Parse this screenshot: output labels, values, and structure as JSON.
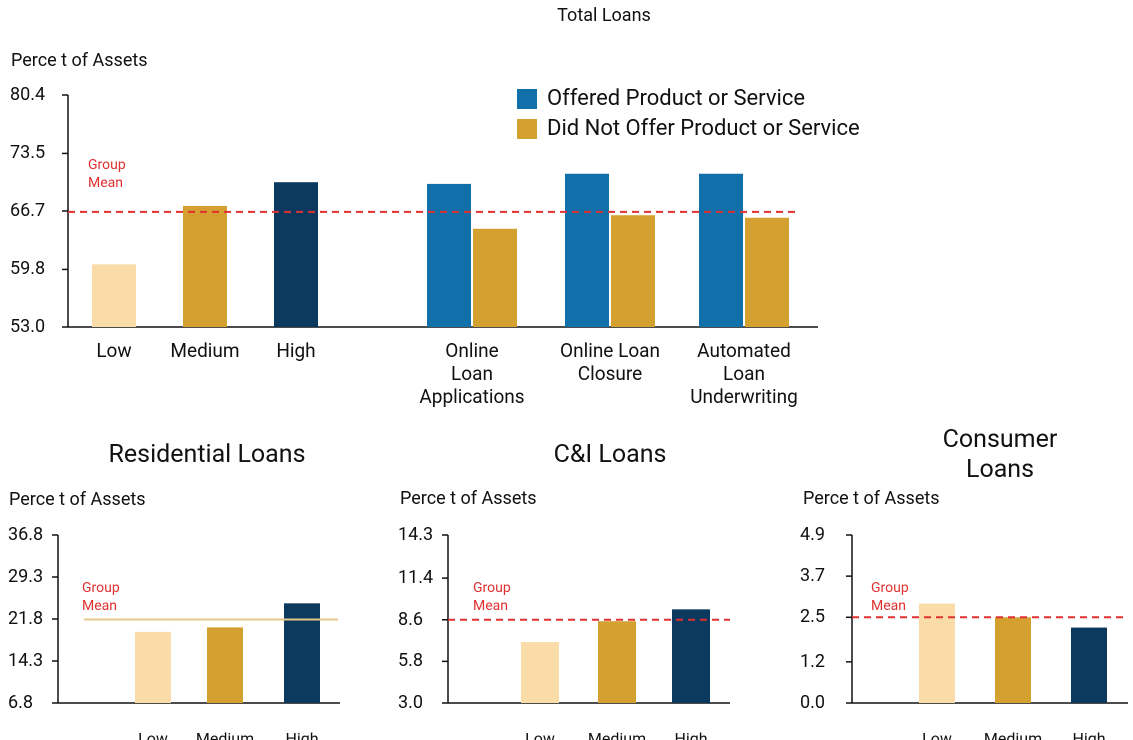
{
  "chart_data": [
    {
      "type": "bar",
      "title": "Total Loans",
      "ylabel": "Perce t of Assets",
      "categories": [
        "Low",
        "Medium",
        "High",
        "Online\nLoan\nApplications",
        "Online Loan\nClosure",
        "Automated\nLoan\nUnderwriting"
      ],
      "series": [
        {
          "colors": [
            "#f9dca8",
            "#d4a030",
            "#0b3a5e"
          ],
          "values": [
            60.4,
            67.3,
            70.1,
            null,
            null,
            null
          ]
        },
        {
          "name": "Offered Product or Service",
          "color": "#1170aa",
          "values": [
            null,
            null,
            null,
            69.9,
            71.1,
            71.1
          ]
        },
        {
          "name": "Did Not Offer Product or Service",
          "color": "#d4a030",
          "values": [
            null,
            null,
            null,
            64.6,
            66.2,
            65.9
          ]
        }
      ],
      "ylim": [
        53,
        80.4
      ],
      "yticks": [
        {
          "value": 53,
          "label": "53.0"
        },
        59.8,
        66.7,
        73.5,
        80.4
      ],
      "mean_line": {
        "label": "Group\nMean",
        "value": 66.6,
        "color": "#e03030",
        "dashed": true
      }
    },
    {
      "type": "bar",
      "title": "Residential Loans",
      "ylabel": "Perce t of Assets",
      "categories": [
        "Low",
        "Medium",
        "High"
      ],
      "series": [
        {
          "colors": [
            "#f9dca8",
            "#d4a030",
            "#0b3a5e"
          ],
          "values": [
            19.5,
            20.3,
            24.6
          ]
        }
      ],
      "ylim": [
        6.8,
        36.8
      ],
      "yticks": [
        6.8,
        14.3,
        21.8,
        29.3,
        36.8
      ],
      "mean_line": {
        "label": "Group\nMean",
        "value": 21.7,
        "color": "#e5c88a",
        "label_color": "#e03030",
        "dashed": false
      }
    },
    {
      "type": "bar",
      "title": "C&I Loans",
      "ylabel": "Perce t of Assets",
      "categories": [
        "Low",
        "Medium",
        "High"
      ],
      "series": [
        {
          "colors": [
            "#f9dca8",
            "#d4a030",
            "#0b3a5e"
          ],
          "values": [
            7.1,
            8.5,
            9.3
          ]
        }
      ],
      "ylim": [
        3,
        14.3
      ],
      "yticks": [
        {
          "value": 3,
          "label": "3.0"
        },
        5.8,
        8.6,
        11.4,
        14.3
      ],
      "mean_line": {
        "label": "Group\nMean",
        "value": 8.6,
        "color": "#e03030",
        "dashed": true
      }
    },
    {
      "type": "bar",
      "title": "Consumer Loans",
      "ylabel": "Perce t of Assets",
      "categories": [
        "Low",
        "Medium",
        "High"
      ],
      "series": [
        {
          "colors": [
            "#f9dca8",
            "#d4a030",
            "#0b3a5e"
          ],
          "values": [
            2.9,
            2.5,
            2.2
          ]
        }
      ],
      "ylim": [
        0,
        4.9
      ],
      "yticks": [
        {
          "value": 0,
          "label": "0.0"
        },
        1.2,
        2.5,
        3.7,
        4.9
      ],
      "mean_line": {
        "label": "Group\nMean",
        "value": 2.5,
        "color": "#e03030",
        "dashed": true
      }
    }
  ]
}
